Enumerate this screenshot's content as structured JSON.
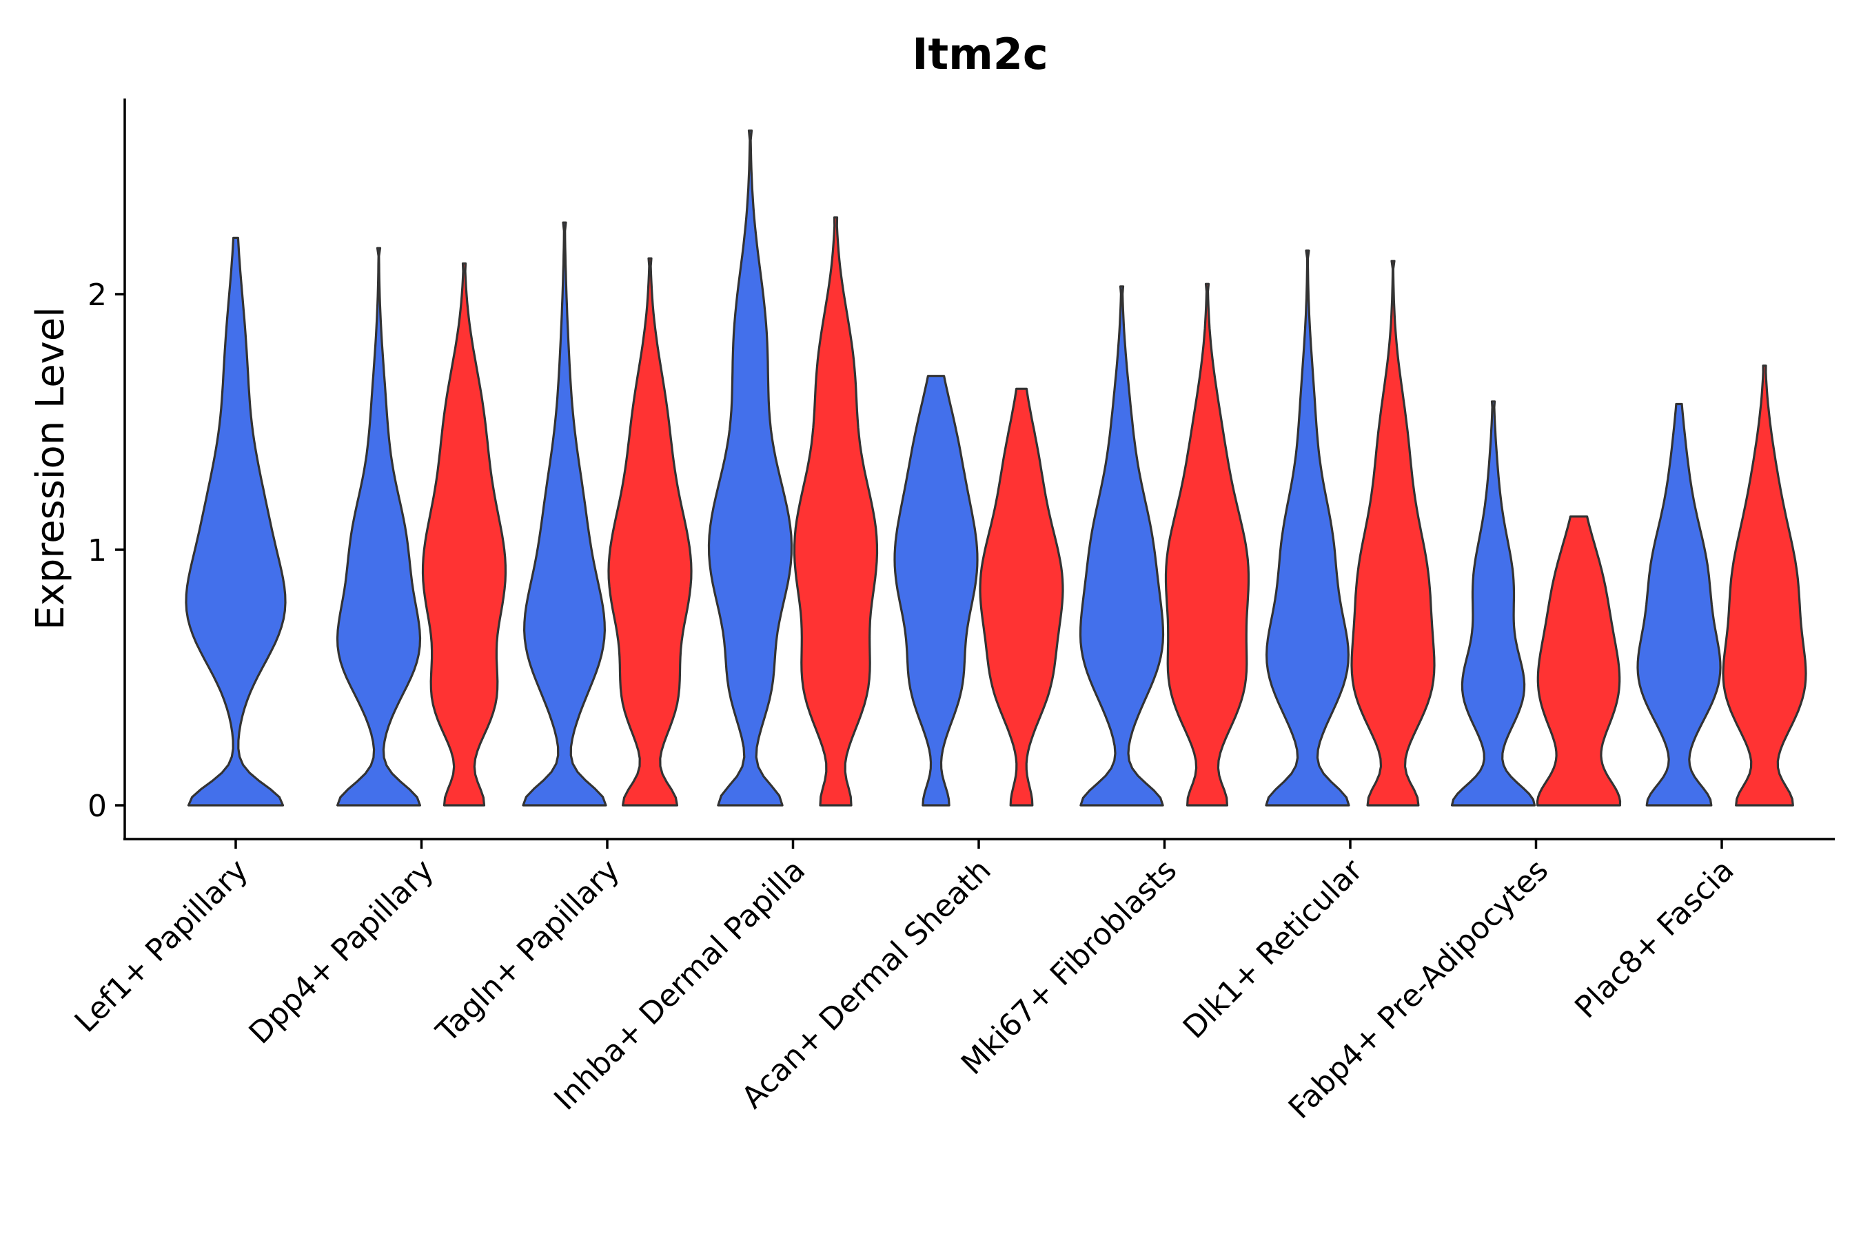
{
  "chart_data": {
    "type": "violin",
    "title": "Itm2c",
    "xlabel": "",
    "ylabel": "Expression Level",
    "ylim": [
      -0.13,
      2.78
    ],
    "yticks": [
      0,
      1,
      2
    ],
    "grid": false,
    "legend": "none",
    "colors": {
      "blue": "#4370EB",
      "red": "#FF3333",
      "outline": "#333333"
    },
    "categories": [
      "Lef1+ Papillary",
      "Dpp4+ Papillary",
      "Tagln+ Papillary",
      "Inhba+ Dermal Papilla",
      "Acan+ Dermal Sheath",
      "Mki67+ Fibroblasts",
      "Dlk1+ Reticular",
      "Fabp4+ Pre-Adipocytes",
      "Plac8+ Fascia"
    ],
    "violins": [
      {
        "category": "Lef1+ Papillary",
        "group": "blue",
        "max": 2.22,
        "modes": [
          {
            "y": 0.0,
            "w": 0.8,
            "s": 0.08
          },
          {
            "y": 0.73,
            "w": 0.66,
            "s": 0.2
          },
          {
            "y": 1.1,
            "w": 0.45,
            "s": 0.25
          },
          {
            "y": 1.7,
            "w": 0.18,
            "s": 0.3
          }
        ]
      },
      {
        "category": "Dpp4+ Papillary",
        "group": "blue",
        "max": 2.18,
        "modes": [
          {
            "y": 0.0,
            "w": 0.72,
            "s": 0.08
          },
          {
            "y": 0.6,
            "w": 0.62,
            "s": 0.18
          },
          {
            "y": 1.0,
            "w": 0.45,
            "s": 0.22
          },
          {
            "y": 1.5,
            "w": 0.12,
            "s": 0.25
          }
        ]
      },
      {
        "category": "Dpp4+ Papillary",
        "group": "red",
        "max": 2.12,
        "modes": [
          {
            "y": 0.0,
            "w": 0.45,
            "s": 0.08
          },
          {
            "y": 0.4,
            "w": 0.55,
            "s": 0.15
          },
          {
            "y": 0.9,
            "w": 0.95,
            "s": 0.28
          },
          {
            "y": 1.5,
            "w": 0.4,
            "s": 0.25
          }
        ]
      },
      {
        "category": "Tagln+ Papillary",
        "group": "blue",
        "max": 2.28,
        "modes": [
          {
            "y": 0.0,
            "w": 0.7,
            "s": 0.08
          },
          {
            "y": 0.65,
            "w": 0.62,
            "s": 0.22
          },
          {
            "y": 1.1,
            "w": 0.3,
            "s": 0.25
          },
          {
            "y": 1.6,
            "w": 0.08,
            "s": 0.3
          }
        ]
      },
      {
        "category": "Tagln+ Papillary",
        "group": "red",
        "max": 2.14,
        "modes": [
          {
            "y": 0.0,
            "w": 0.62,
            "s": 0.08
          },
          {
            "y": 0.4,
            "w": 0.45,
            "s": 0.15
          },
          {
            "y": 0.9,
            "w": 0.95,
            "s": 0.28
          },
          {
            "y": 1.5,
            "w": 0.35,
            "s": 0.25
          }
        ]
      },
      {
        "category": "Inhba+ Dermal Papilla",
        "group": "blue",
        "max": 2.64,
        "modes": [
          {
            "y": 0.0,
            "w": 0.7,
            "s": 0.08
          },
          {
            "y": 0.45,
            "w": 0.3,
            "s": 0.15
          },
          {
            "y": 1.0,
            "w": 0.9,
            "s": 0.3
          },
          {
            "y": 1.8,
            "w": 0.35,
            "s": 0.3
          }
        ]
      },
      {
        "category": "Inhba+ Dermal Papilla",
        "group": "red",
        "max": 2.3,
        "modes": [
          {
            "y": 0.0,
            "w": 0.35,
            "s": 0.08
          },
          {
            "y": 0.45,
            "w": 0.6,
            "s": 0.18
          },
          {
            "y": 1.0,
            "w": 1.0,
            "s": 0.3
          },
          {
            "y": 1.7,
            "w": 0.4,
            "s": 0.25
          }
        ]
      },
      {
        "category": "Acan+ Dermal Sheath",
        "group": "blue",
        "max": 1.68,
        "modes": [
          {
            "y": 0.0,
            "w": 0.3,
            "s": 0.08
          },
          {
            "y": 0.45,
            "w": 0.4,
            "s": 0.15
          },
          {
            "y": 0.95,
            "w": 0.95,
            "s": 0.28
          },
          {
            "y": 1.45,
            "w": 0.3,
            "s": 0.2
          }
        ]
      },
      {
        "category": "Acan+ Dermal Sheath",
        "group": "red",
        "max": 1.63,
        "modes": [
          {
            "y": 0.0,
            "w": 0.25,
            "s": 0.08
          },
          {
            "y": 0.45,
            "w": 0.4,
            "s": 0.15
          },
          {
            "y": 0.85,
            "w": 0.95,
            "s": 0.25
          },
          {
            "y": 1.35,
            "w": 0.3,
            "s": 0.2
          }
        ]
      },
      {
        "category": "Mki67+ Fibroblasts",
        "group": "blue",
        "max": 2.03,
        "modes": [
          {
            "y": 0.0,
            "w": 0.7,
            "s": 0.08
          },
          {
            "y": 0.6,
            "w": 0.6,
            "s": 0.2
          },
          {
            "y": 1.0,
            "w": 0.45,
            "s": 0.22
          },
          {
            "y": 1.45,
            "w": 0.15,
            "s": 0.25
          }
        ]
      },
      {
        "category": "Mki67+ Fibroblasts",
        "group": "red",
        "max": 2.04,
        "modes": [
          {
            "y": 0.0,
            "w": 0.35,
            "s": 0.08
          },
          {
            "y": 0.45,
            "w": 0.55,
            "s": 0.18
          },
          {
            "y": 0.9,
            "w": 0.72,
            "s": 0.25
          },
          {
            "y": 1.4,
            "w": 0.25,
            "s": 0.25
          }
        ]
      },
      {
        "category": "Dlk1+ Reticular",
        "group": "blue",
        "max": 2.17,
        "modes": [
          {
            "y": 0.0,
            "w": 0.7,
            "s": 0.08
          },
          {
            "y": 0.55,
            "w": 0.65,
            "s": 0.2
          },
          {
            "y": 1.0,
            "w": 0.4,
            "s": 0.22
          },
          {
            "y": 1.5,
            "w": 0.12,
            "s": 0.25
          }
        ]
      },
      {
        "category": "Dlk1+ Reticular",
        "group": "red",
        "max": 2.13,
        "modes": [
          {
            "y": 0.0,
            "w": 0.45,
            "s": 0.08
          },
          {
            "y": 0.45,
            "w": 0.55,
            "s": 0.18
          },
          {
            "y": 0.85,
            "w": 0.62,
            "s": 0.25
          },
          {
            "y": 1.4,
            "w": 0.25,
            "s": 0.25
          }
        ]
      },
      {
        "category": "Fabp4+ Pre-Adipocytes",
        "group": "blue",
        "max": 1.58,
        "modes": [
          {
            "y": 0.0,
            "w": 0.7,
            "s": 0.08
          },
          {
            "y": 0.45,
            "w": 0.5,
            "s": 0.15
          },
          {
            "y": 0.85,
            "w": 0.32,
            "s": 0.18
          },
          {
            "y": 1.2,
            "w": 0.08,
            "s": 0.2
          }
        ]
      },
      {
        "category": "Fabp4+ Pre-Adipocytes",
        "group": "red",
        "max": 1.13,
        "modes": [
          {
            "y": 0.0,
            "w": 0.7,
            "s": 0.1
          },
          {
            "y": 0.45,
            "w": 0.68,
            "s": 0.2
          },
          {
            "y": 0.85,
            "w": 0.4,
            "s": 0.2
          }
        ]
      },
      {
        "category": "Plac8+ Fascia",
        "group": "blue",
        "max": 1.57,
        "modes": [
          {
            "y": 0.0,
            "w": 0.55,
            "s": 0.08
          },
          {
            "y": 0.5,
            "w": 0.65,
            "s": 0.18
          },
          {
            "y": 0.9,
            "w": 0.45,
            "s": 0.2
          },
          {
            "y": 1.3,
            "w": 0.12,
            "s": 0.2
          }
        ]
      },
      {
        "category": "Plac8+ Fascia",
        "group": "red",
        "max": 1.72,
        "modes": [
          {
            "y": 0.0,
            "w": 0.55,
            "s": 0.08
          },
          {
            "y": 0.45,
            "w": 0.7,
            "s": 0.18
          },
          {
            "y": 0.85,
            "w": 0.6,
            "s": 0.22
          },
          {
            "y": 1.25,
            "w": 0.2,
            "s": 0.22
          }
        ]
      }
    ]
  }
}
